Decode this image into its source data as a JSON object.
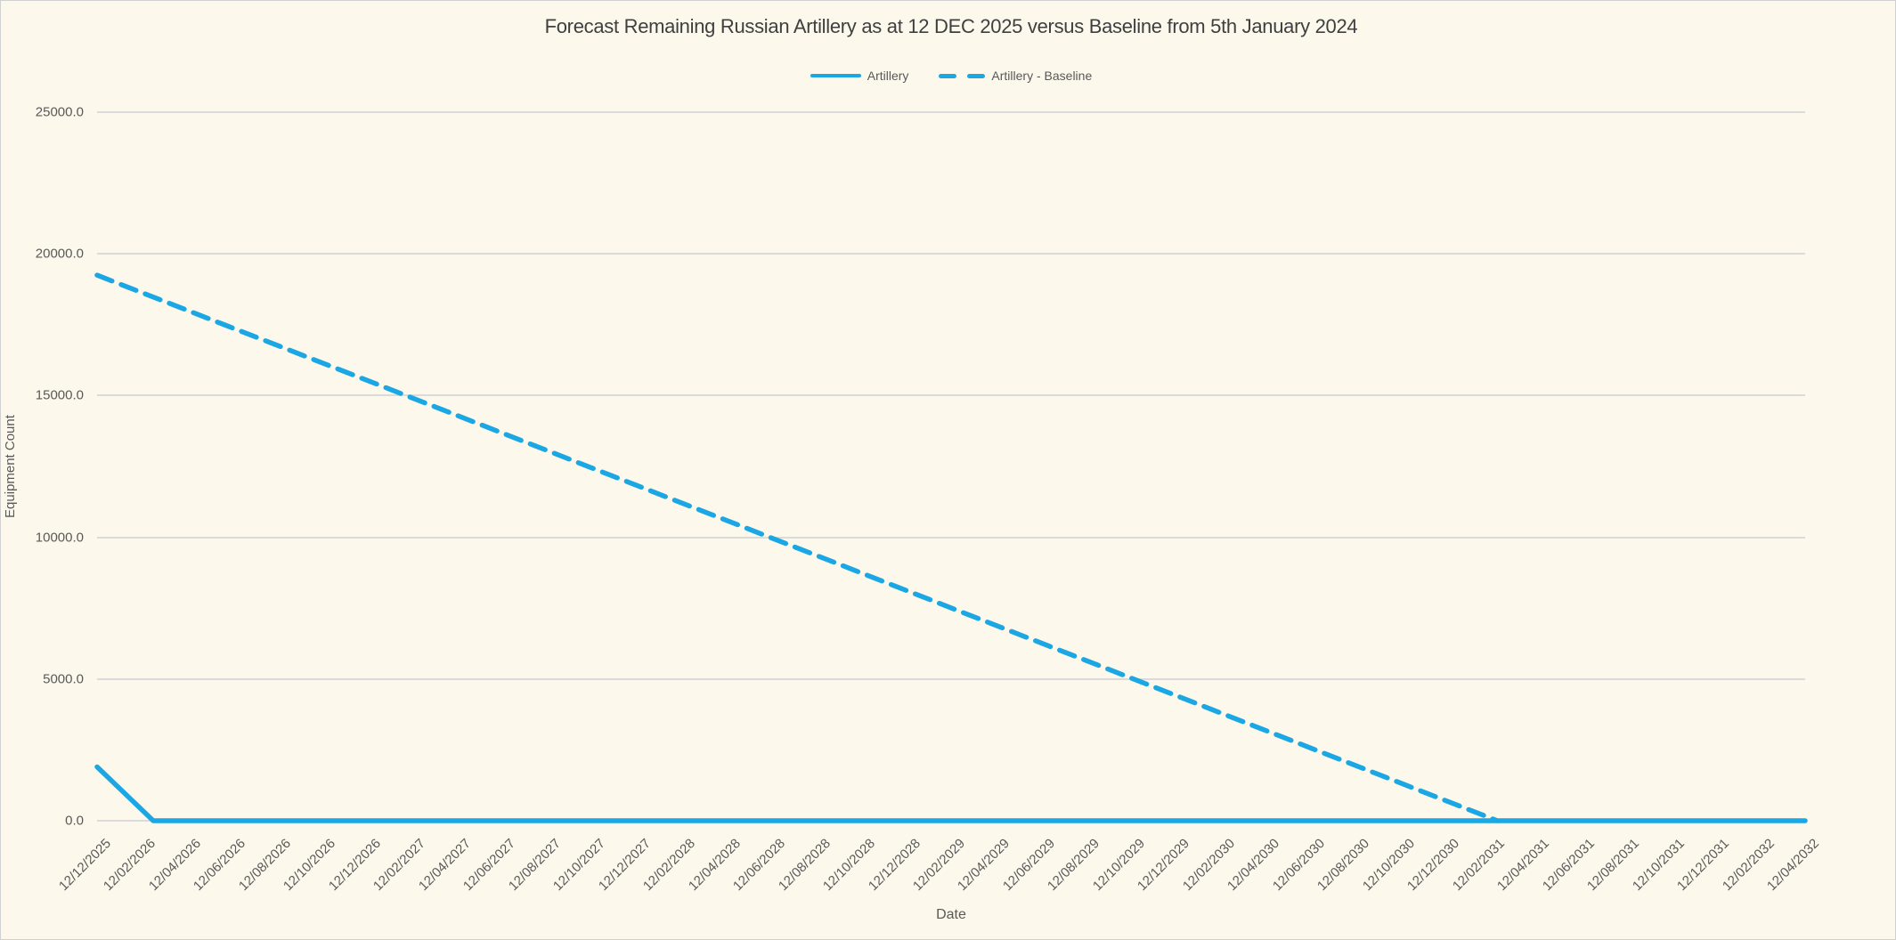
{
  "chart_data": {
    "type": "line",
    "title": "Forecast Remaining Russian Artillery as at 12 DEC 2025 versus Baseline from 5th January 2024",
    "xlabel": "Date",
    "ylabel": "Equipment Count",
    "ylim": [
      0,
      25000
    ],
    "y_ticks": [
      {
        "value": 25000,
        "label": "25000.0"
      },
      {
        "value": 20000,
        "label": "20000.0"
      },
      {
        "value": 15000,
        "label": "15000.0"
      },
      {
        "value": 10000,
        "label": "10000.0"
      },
      {
        "value": 5000,
        "label": "5000.0"
      },
      {
        "value": 0,
        "label": "0.0"
      }
    ],
    "x_tick_labels": [
      "12/12/2025",
      "12/02/2026",
      "12/04/2026",
      "12/06/2026",
      "12/08/2026",
      "12/10/2026",
      "12/12/2026",
      "12/02/2027",
      "12/04/2027",
      "12/06/2027",
      "12/08/2027",
      "12/10/2027",
      "12/12/2027",
      "12/02/2028",
      "12/04/2028",
      "12/06/2028",
      "12/08/2028",
      "12/10/2028",
      "12/12/2028",
      "12/02/2029",
      "12/04/2029",
      "12/06/2029",
      "12/08/2029",
      "12/10/2029",
      "12/12/2029",
      "12/02/2030",
      "12/04/2030",
      "12/06/2030",
      "12/08/2030",
      "12/10/2030",
      "12/12/2030",
      "12/02/2031",
      "12/04/2031",
      "12/06/2031",
      "12/08/2031",
      "12/10/2031",
      "12/12/2031",
      "12/02/2032",
      "12/04/2032"
    ],
    "x_range_months": [
      0,
      76
    ],
    "legend_position": "top-center",
    "grid": "horizontal",
    "series": [
      {
        "name": "Artillery",
        "style": "solid",
        "color": "#1BA7E3",
        "points": [
          {
            "month": 0,
            "value": 1900
          },
          {
            "month": 2.5,
            "value": 0
          },
          {
            "month": 76,
            "value": 0
          }
        ]
      },
      {
        "name": "Artillery - Baseline",
        "style": "dashed",
        "color": "#1BA7E3",
        "points": [
          {
            "month": 0,
            "value": 19250
          },
          {
            "month": 62.3,
            "value": 0
          }
        ]
      }
    ],
    "colors": {
      "line": "#1BA7E3",
      "background": "#FDF8EC",
      "gridline": "#DBDBDB",
      "tick_text": "#595959",
      "title_text": "#3F3F3F",
      "frame_border": "#D0D0D0"
    }
  }
}
